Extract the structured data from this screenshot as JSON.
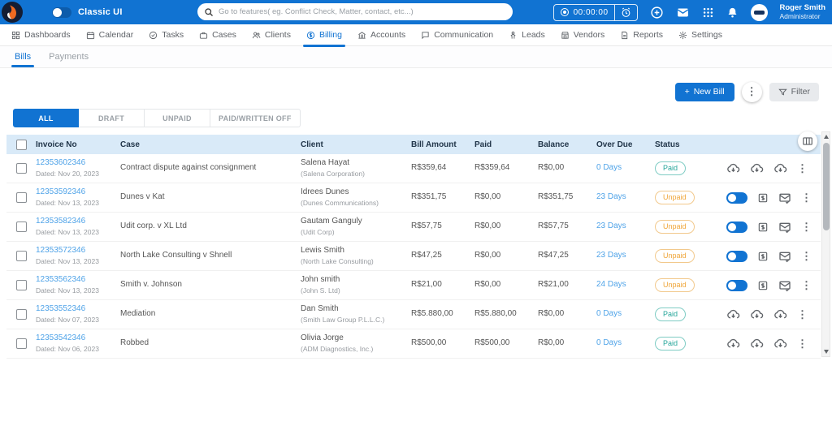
{
  "topbar": {
    "brand_label": "Classic UI",
    "search_placeholder": "Go to features( eg. Conflict Check, Matter, contact, etc...)",
    "timer_value": "00:00:00",
    "user_name": "Roger Smith",
    "user_role": "Administrator"
  },
  "nav": {
    "items": [
      {
        "label": "Dashboards",
        "icon": "dashboards-icon",
        "active": false
      },
      {
        "label": "Calendar",
        "icon": "calendar-icon",
        "active": false
      },
      {
        "label": "Tasks",
        "icon": "tasks-icon",
        "active": false
      },
      {
        "label": "Cases",
        "icon": "cases-icon",
        "active": false
      },
      {
        "label": "Clients",
        "icon": "clients-icon",
        "active": false
      },
      {
        "label": "Billing",
        "icon": "billing-icon",
        "active": true
      },
      {
        "label": "Accounts",
        "icon": "accounts-icon",
        "active": false
      },
      {
        "label": "Communication",
        "icon": "communication-icon",
        "active": false
      },
      {
        "label": "Leads",
        "icon": "leads-icon",
        "active": false
      },
      {
        "label": "Vendors",
        "icon": "vendors-icon",
        "active": false
      },
      {
        "label": "Reports",
        "icon": "reports-icon",
        "active": false
      },
      {
        "label": "Settings",
        "icon": "settings-icon",
        "active": false
      }
    ]
  },
  "tabs": [
    {
      "label": "Bills",
      "active": true
    },
    {
      "label": "Payments",
      "active": false
    }
  ],
  "toolbar": {
    "new_bill_label": "New Bill",
    "filter_label": "Filter"
  },
  "segments": [
    {
      "label": "ALL",
      "active": true
    },
    {
      "label": "DRAFT",
      "active": false
    },
    {
      "label": "UNPAID",
      "active": false
    },
    {
      "label": "PAID/WRITTEN OFF",
      "active": false
    }
  ],
  "table": {
    "columns": [
      "Invoice No",
      "Case",
      "Client",
      "Bill Amount",
      "Paid",
      "Balance",
      "Over Due",
      "Status"
    ],
    "rows": [
      {
        "invoice_no": "12353602346",
        "dated": "Dated: Nov 20, 2023",
        "case": "Contract dispute against consignment",
        "client": "Salena Hayat",
        "client_org": "(Salena Corporation)",
        "bill_amount": "R$359,64",
        "paid": "R$359,64",
        "balance": "R$0,00",
        "over_due": "0 Days",
        "status": "Paid",
        "actions": [
          "download-invoice-icon",
          "download-invoice-icon",
          "download-invoice-icon"
        ]
      },
      {
        "invoice_no": "12353592346",
        "dated": "Dated: Nov 13, 2023",
        "case": "Dunes v Kat",
        "client": "Idrees Dunes",
        "client_org": "(Dunes Communications)",
        "bill_amount": "R$351,75",
        "paid": "R$0,00",
        "balance": "R$351,75",
        "over_due": "23 Days",
        "status": "Unpaid",
        "actions": [
          "toggle-on",
          "statement-icon",
          "send-invoice-icon"
        ]
      },
      {
        "invoice_no": "12353582346",
        "dated": "Dated: Nov 13, 2023",
        "case": "Udit corp. v XL Ltd",
        "client": "Gautam Ganguly",
        "client_org": "(Udit Corp)",
        "bill_amount": "R$57,75",
        "paid": "R$0,00",
        "balance": "R$57,75",
        "over_due": "23 Days",
        "status": "Unpaid",
        "actions": [
          "toggle-on",
          "statement-icon",
          "send-invoice-icon"
        ]
      },
      {
        "invoice_no": "12353572346",
        "dated": "Dated: Nov 13, 2023",
        "case": "North Lake Consulting v Shnell",
        "client": "Lewis Smith",
        "client_org": "(North Lake Consulting)",
        "bill_amount": "R$47,25",
        "paid": "R$0,00",
        "balance": "R$47,25",
        "over_due": "23 Days",
        "status": "Unpaid",
        "actions": [
          "toggle-on",
          "statement-icon",
          "send-invoice-icon"
        ]
      },
      {
        "invoice_no": "12353562346",
        "dated": "Dated: Nov 13, 2023",
        "case": "Smith v. Johnson",
        "client": "John smith",
        "client_org": "(John S. Ltd)",
        "bill_amount": "R$21,00",
        "paid": "R$0,00",
        "balance": "R$21,00",
        "over_due": "24 Days",
        "status": "Unpaid",
        "actions": [
          "toggle-on",
          "statement-icon",
          "send-invoice-icon"
        ]
      },
      {
        "invoice_no": "12353552346",
        "dated": "Dated: Nov 07, 2023",
        "case": "Mediation",
        "client": "Dan Smith",
        "client_org": "(Smith Law Group P.L.L.C.)",
        "bill_amount": "R$5.880,00",
        "paid": "R$5.880,00",
        "balance": "R$0,00",
        "over_due": "0 Days",
        "status": "Paid",
        "actions": [
          "download-invoice-icon",
          "download-invoice-icon",
          "download-invoice-icon"
        ]
      },
      {
        "invoice_no": "12353542346",
        "dated": "Dated: Nov 06, 2023",
        "case": "Robbed",
        "client": "Olivia Jorge",
        "client_org": "(ADM Diagnostics, Inc.)",
        "bill_amount": "R$500,00",
        "paid": "R$500,00",
        "balance": "R$0,00",
        "over_due": "0 Days",
        "status": "Paid",
        "actions": [
          "download-invoice-icon",
          "download-invoice-icon",
          "download-invoice-icon"
        ]
      }
    ]
  },
  "colors": {
    "accent_blue": "#1173d2",
    "link_blue": "#4fa3e8",
    "paid_green": "#26a69a",
    "unpaid_orange": "#efa63a",
    "table_header_bg": "#d9eaf8"
  }
}
